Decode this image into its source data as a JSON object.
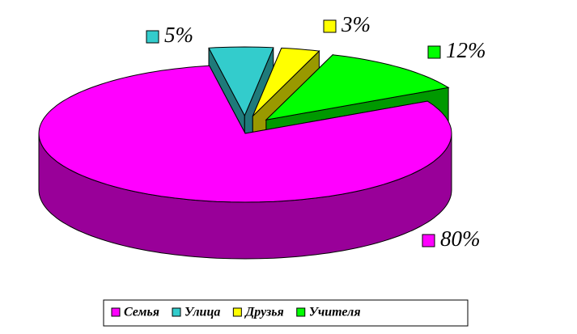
{
  "chart_data": {
    "type": "pie",
    "categories": [
      "Семья",
      "Улица",
      "Друзья",
      "Учителя"
    ],
    "values": [
      80,
      5,
      3,
      12
    ],
    "value_labels": [
      "80%",
      "5%",
      "3%",
      "12%"
    ],
    "colors": [
      "#ff00ff",
      "#33cccc",
      "#ffff00",
      "#00ff00"
    ],
    "legend": "bottom"
  }
}
